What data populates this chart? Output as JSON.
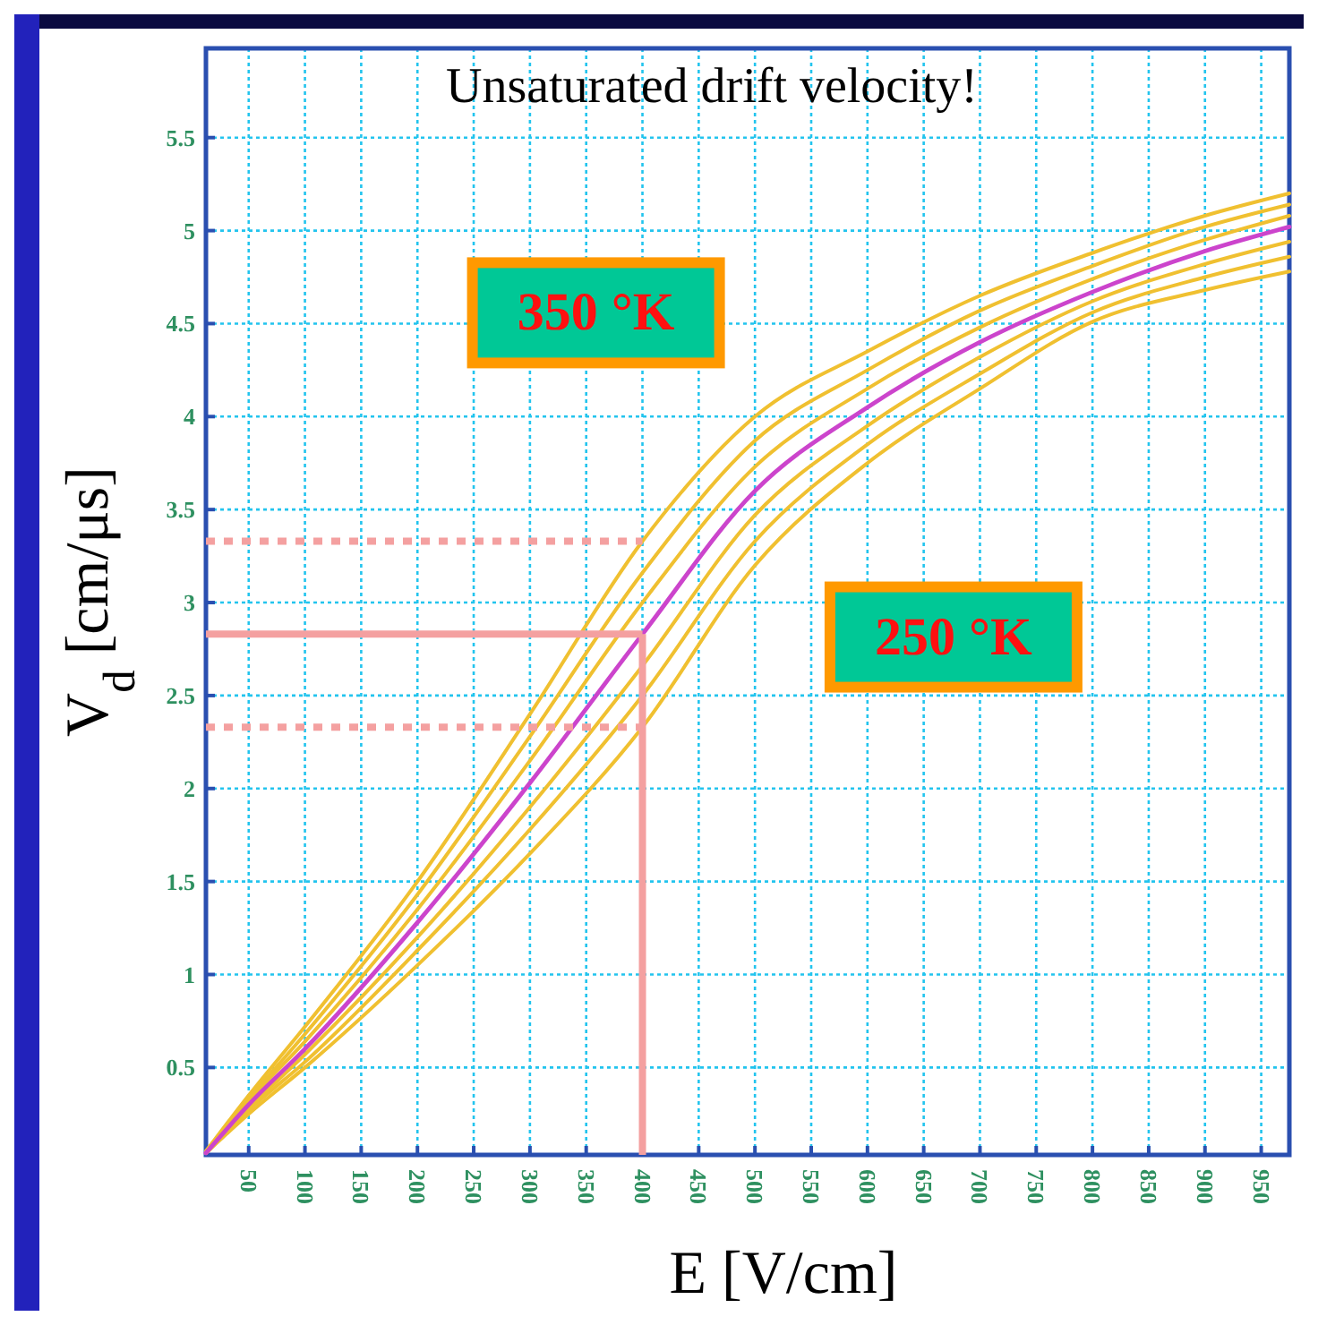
{
  "chart_data": {
    "type": "line",
    "title": "Unsaturated drift velocity!",
    "xlabel": "E [V/cm]",
    "ylabel": "V$_{d}$ [cm/μs]",
    "x": [
      12,
      50,
      100,
      200,
      300,
      400,
      500,
      600,
      700,
      800,
      900,
      975
    ],
    "series": [
      {
        "color": "#f0c030",
        "values": [
          0.05,
          0.35,
          0.72,
          1.5,
          2.4,
          3.33,
          4.0,
          4.35,
          4.65,
          4.88,
          5.08,
          5.2
        ]
      },
      {
        "color": "#f0c030",
        "values": [
          0.05,
          0.33,
          0.68,
          1.43,
          2.28,
          3.16,
          3.87,
          4.25,
          4.57,
          4.81,
          5.02,
          5.14
        ]
      },
      {
        "color": "#f0c030",
        "values": [
          0.04,
          0.32,
          0.64,
          1.35,
          2.15,
          3.0,
          3.73,
          4.15,
          4.48,
          4.74,
          4.95,
          5.08
        ]
      },
      {
        "color": "#f0c030",
        "values": [
          0.04,
          0.28,
          0.57,
          1.2,
          1.9,
          2.66,
          3.47,
          3.95,
          4.32,
          4.62,
          4.82,
          4.94
        ]
      },
      {
        "color": "#f0c030",
        "values": [
          0.04,
          0.27,
          0.53,
          1.13,
          1.78,
          2.5,
          3.33,
          3.85,
          4.23,
          4.56,
          4.75,
          4.86
        ]
      },
      {
        "color": "#f0c030",
        "values": [
          0.04,
          0.25,
          0.5,
          1.05,
          1.65,
          2.33,
          3.2,
          3.75,
          4.15,
          4.51,
          4.68,
          4.78
        ]
      },
      {
        "color": "#cc44cc",
        "values": [
          0.04,
          0.3,
          0.6,
          1.28,
          2.03,
          2.83,
          3.6,
          4.05,
          4.4,
          4.67,
          4.89,
          5.02
        ]
      }
    ],
    "xlim": [
      12,
      975
    ],
    "ylim": [
      0.03,
      5.98
    ],
    "xticks": [
      50,
      100,
      150,
      200,
      250,
      300,
      350,
      400,
      450,
      500,
      550,
      600,
      650,
      700,
      750,
      800,
      850,
      900,
      950
    ],
    "yticks": [
      0.5,
      1,
      1.5,
      2,
      2.5,
      3,
      3.5,
      4,
      4.5,
      5,
      5.5
    ],
    "grid": true,
    "marker": "none",
    "line_style": "solid",
    "ref_lines": [
      {
        "axis": "x",
        "value": 400,
        "color": "#f4a0a0",
        "line_style": "solid"
      },
      {
        "axis": "y",
        "value": 2.83,
        "color": "#f4a0a0",
        "line_style": "solid"
      },
      {
        "axis": "y",
        "value": 3.33,
        "color": "#f4a0a0",
        "line_style": "dotted"
      },
      {
        "axis": "y",
        "value": 2.33,
        "color": "#f4a0a0",
        "line_style": "dotted"
      }
    ],
    "annotations": [
      "350 °K",
      "250 °K"
    ]
  }
}
